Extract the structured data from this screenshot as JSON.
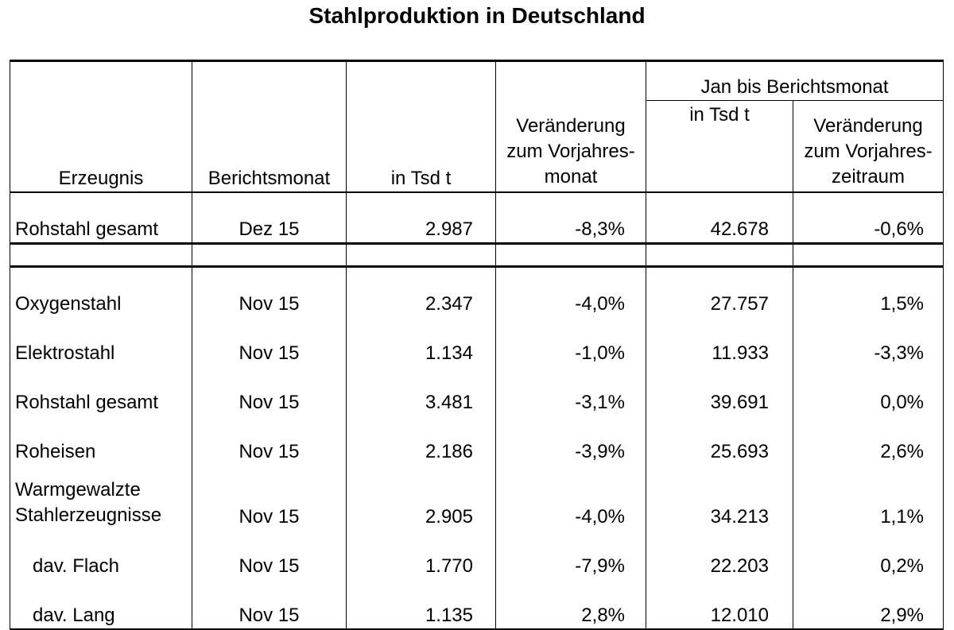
{
  "title": "Stahlproduktion in Deutschland",
  "headers": {
    "col1": "Erzeugnis",
    "col2": "Berichtsmonat",
    "col3": "in Tsd t",
    "col4_line1": "Veränderung",
    "col4_line2": "zum Vorjahres-",
    "col4_line3": "monat",
    "group": "Jan bis Berichtsmonat",
    "col5": "in Tsd t",
    "col6_line1": "Veränderung",
    "col6_line2": "zum Vorjahres-",
    "col6_line3": "zeitraum"
  },
  "summary_row": {
    "product": "Rohstahl gesamt",
    "month": "Dez 15",
    "value": "2.987",
    "change_month": "-8,3%",
    "ytd_value": "42.678",
    "change_ytd": "-0,6%"
  },
  "rows": [
    {
      "product": "Oxygenstahl",
      "month": "Nov 15",
      "value": "2.347",
      "change_month": "-4,0%",
      "ytd_value": "27.757",
      "change_ytd": "1,5%"
    },
    {
      "product": "Elektrostahl",
      "month": "Nov 15",
      "value": "1.134",
      "change_month": "-1,0%",
      "ytd_value": "11.933",
      "change_ytd": "-3,3%"
    },
    {
      "product": "Rohstahl gesamt",
      "month": "Nov 15",
      "value": "3.481",
      "change_month": "-3,1%",
      "ytd_value": "39.691",
      "change_ytd": "0,0%"
    },
    {
      "product": "Roheisen",
      "month": "Nov 15",
      "value": "2.186",
      "change_month": "-3,9%",
      "ytd_value": "25.693",
      "change_ytd": "2,6%"
    },
    {
      "product_line1": "Warmgewalzte",
      "product_line2": "Stahlerzeugnisse",
      "month": "Nov 15",
      "value": "2.905",
      "change_month": "-4,0%",
      "ytd_value": "34.213",
      "change_ytd": "1,1%"
    },
    {
      "product": "dav. Flach",
      "month": "Nov 15",
      "value": "1.770",
      "change_month": "-7,9%",
      "ytd_value": "22.203",
      "change_ytd": "0,2%"
    },
    {
      "product": "dav. Lang",
      "month": "Nov 15",
      "value": "1.135",
      "change_month": "2,8%",
      "ytd_value": "12.010",
      "change_ytd": "2,9%"
    }
  ]
}
